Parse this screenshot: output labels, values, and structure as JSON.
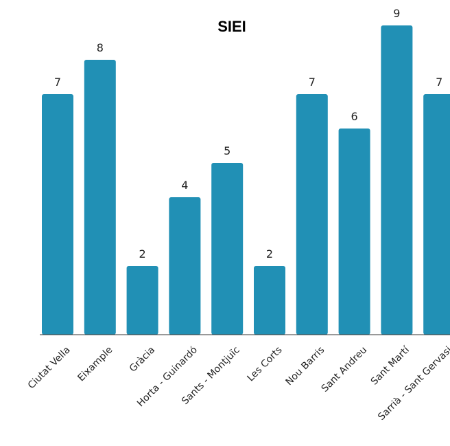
{
  "chart_data": {
    "type": "bar",
    "title": "SIEI",
    "xlabel": "",
    "ylabel": "",
    "categories": [
      "Ciutat Vella",
      "Eixample",
      "Gràcia",
      "Horta - Guinardó",
      "Sants - Montjuïc",
      "Les Corts",
      "Nou Barris",
      "Sant Andreu",
      "Sant Martí",
      "Sarrià - Sant Gervasi"
    ],
    "values": [
      7,
      8,
      2,
      4,
      5,
      2,
      7,
      6,
      9,
      7
    ],
    "ylim": [
      0,
      9
    ],
    "grid": false,
    "legend": "none",
    "bar_color": "#2190b5",
    "axis_color": "#333333"
  }
}
